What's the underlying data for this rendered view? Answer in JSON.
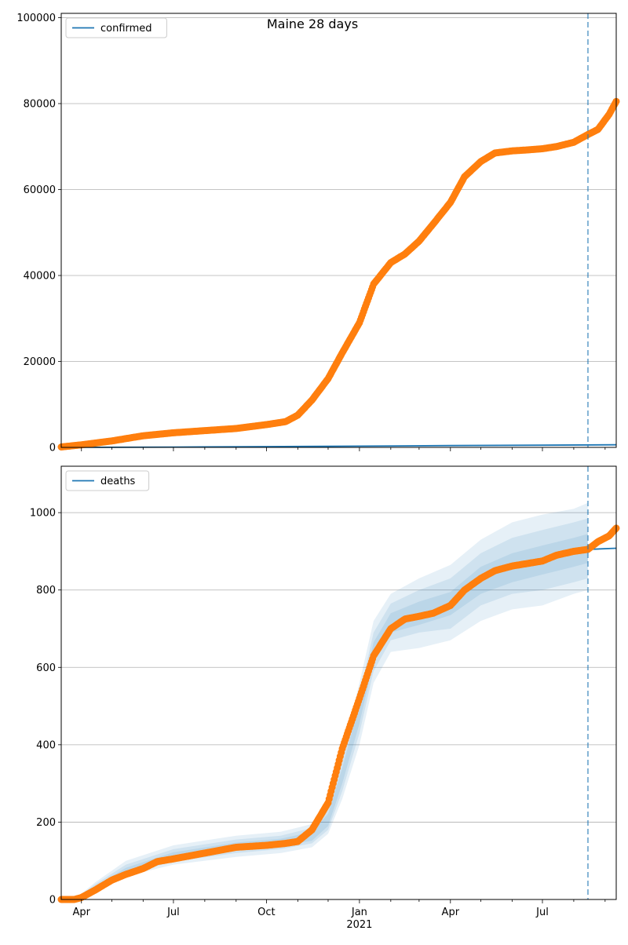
{
  "figure": {
    "title": "Maine 28 days"
  },
  "x_axis": {
    "ticks": [
      {
        "date": "2020-04-01",
        "label": "Apr",
        "sublabel": ""
      },
      {
        "date": "2020-07-01",
        "label": "Jul",
        "sublabel": ""
      },
      {
        "date": "2020-10-01",
        "label": "Oct",
        "sublabel": ""
      },
      {
        "date": "2021-01-01",
        "label": "Jan",
        "sublabel": "2021"
      },
      {
        "date": "2021-04-01",
        "label": "Apr",
        "sublabel": ""
      },
      {
        "date": "2021-07-01",
        "label": "Jul",
        "sublabel": ""
      }
    ]
  },
  "chart_data": [
    {
      "type": "line",
      "panel": "top",
      "title": "Maine 28 days",
      "xlim": [
        "2020-03-12",
        "2021-09-12"
      ],
      "ylim": [
        0,
        101000
      ],
      "yticks": [
        0,
        20000,
        40000,
        60000,
        80000,
        100000
      ],
      "ytick_labels": [
        "0",
        "20000",
        "40000",
        "60000",
        "80000",
        "100000"
      ],
      "grid": "horizontal",
      "legend": {
        "placement": "top-left",
        "entries": [
          "confirmed"
        ]
      },
      "forecast_start": "2021-08-15",
      "colors": {
        "model": "#1f77b4",
        "observed": "#ff7f0e",
        "vline": "#1f77b4"
      },
      "series": [
        {
          "name": "confirmed",
          "kind": "model",
          "x": [
            "2020-03-12",
            "2020-07-01",
            "2020-10-01",
            "2021-01-01",
            "2021-04-01",
            "2021-07-01",
            "2021-09-12"
          ],
          "y": [
            0,
            80,
            180,
            300,
            420,
            520,
            600
          ]
        },
        {
          "kind": "observed",
          "x": [
            "2020-03-12",
            "2020-04-01",
            "2020-05-01",
            "2020-06-01",
            "2020-07-01",
            "2020-08-01",
            "2020-09-01",
            "2020-10-01",
            "2020-10-20",
            "2020-11-01",
            "2020-11-15",
            "2020-12-01",
            "2020-12-15",
            "2021-01-01",
            "2021-01-15",
            "2021-02-01",
            "2021-02-15",
            "2021-03-01",
            "2021-03-15",
            "2021-04-01",
            "2021-04-15",
            "2021-05-01",
            "2021-05-15",
            "2021-06-01",
            "2021-06-15",
            "2021-07-01",
            "2021-07-15",
            "2021-08-01",
            "2021-08-15",
            "2021-08-25",
            "2021-09-05",
            "2021-09-12"
          ],
          "y": [
            100,
            600,
            1500,
            2700,
            3400,
            3900,
            4400,
            5300,
            6000,
            7500,
            11000,
            16000,
            22000,
            29000,
            38000,
            43000,
            45000,
            48000,
            52000,
            57000,
            63000,
            66500,
            68500,
            69000,
            69200,
            69500,
            70000,
            71000,
            72800,
            74000,
            77500,
            80500
          ]
        }
      ]
    },
    {
      "type": "line",
      "panel": "bottom",
      "xlim": [
        "2020-03-12",
        "2021-09-12"
      ],
      "ylim": [
        0,
        1120
      ],
      "yticks": [
        0,
        200,
        400,
        600,
        800,
        1000
      ],
      "ytick_labels": [
        "0",
        "200",
        "400",
        "600",
        "800",
        "1000"
      ],
      "grid": "horizontal",
      "legend": {
        "placement": "top-left",
        "entries": [
          "deaths"
        ]
      },
      "forecast_start": "2021-08-15",
      "colors": {
        "model": "#1f77b4",
        "observed": "#ff7f0e",
        "vline": "#1f77b4"
      },
      "bands": [
        {
          "level": "outer",
          "x": [
            "2020-03-25",
            "2020-04-15",
            "2020-05-15",
            "2020-07-01",
            "2020-09-01",
            "2020-10-15",
            "2020-11-15",
            "2020-12-01",
            "2020-12-15",
            "2021-01-01",
            "2021-01-15",
            "2021-02-01",
            "2021-03-01",
            "2021-04-01",
            "2021-05-01",
            "2021-06-01",
            "2021-07-01",
            "2021-08-01",
            "2021-08-15"
          ],
          "lower": [
            0,
            20,
            60,
            90,
            110,
            120,
            135,
            170,
            260,
            400,
            560,
            640,
            650,
            670,
            720,
            750,
            760,
            790,
            800
          ],
          "upper": [
            0,
            45,
            100,
            140,
            165,
            175,
            195,
            250,
            380,
            560,
            720,
            790,
            830,
            865,
            930,
            975,
            995,
            1010,
            1025
          ]
        },
        {
          "level": "middle",
          "x": [
            "2020-03-25",
            "2020-04-15",
            "2020-05-15",
            "2020-07-01",
            "2020-09-01",
            "2020-10-15",
            "2020-11-15",
            "2020-12-01",
            "2020-12-15",
            "2021-01-01",
            "2021-01-15",
            "2021-02-01",
            "2021-03-01",
            "2021-04-01",
            "2021-05-01",
            "2021-06-01",
            "2021-07-01",
            "2021-08-01",
            "2021-08-15"
          ],
          "lower": [
            0,
            25,
            65,
            98,
            120,
            130,
            145,
            180,
            280,
            430,
            590,
            670,
            690,
            700,
            760,
            790,
            800,
            820,
            830
          ],
          "upper": [
            0,
            40,
            90,
            130,
            155,
            165,
            185,
            235,
            360,
            530,
            690,
            765,
            800,
            830,
            895,
            935,
            955,
            975,
            985
          ]
        },
        {
          "level": "inner",
          "x": [
            "2020-03-25",
            "2020-04-15",
            "2020-05-15",
            "2020-07-01",
            "2020-09-01",
            "2020-10-15",
            "2020-11-15",
            "2020-12-01",
            "2020-12-15",
            "2021-01-01",
            "2021-01-15",
            "2021-02-01",
            "2021-03-01",
            "2021-04-01",
            "2021-05-01",
            "2021-06-01",
            "2021-07-01",
            "2021-08-01",
            "2021-08-15"
          ],
          "lower": [
            0,
            30,
            72,
            105,
            128,
            138,
            152,
            190,
            300,
            455,
            615,
            690,
            710,
            735,
            790,
            820,
            840,
            860,
            870
          ],
          "upper": [
            0,
            35,
            82,
            122,
            147,
            157,
            175,
            222,
            340,
            505,
            665,
            740,
            770,
            795,
            860,
            895,
            915,
            935,
            945
          ]
        }
      ],
      "series": [
        {
          "name": "deaths",
          "kind": "model",
          "x": [
            "2020-03-12",
            "2020-04-01",
            "2020-05-01",
            "2020-06-01",
            "2020-07-01",
            "2020-08-01",
            "2020-09-01",
            "2020-10-01",
            "2020-10-20",
            "2020-11-01",
            "2020-11-15",
            "2020-12-01",
            "2020-12-15",
            "2021-01-01",
            "2021-01-15",
            "2021-02-01",
            "2021-02-15",
            "2021-03-01",
            "2021-03-15",
            "2021-04-01",
            "2021-04-15",
            "2021-05-01",
            "2021-05-15",
            "2021-06-01",
            "2021-06-15",
            "2021-07-01",
            "2021-07-15",
            "2021-08-01",
            "2021-08-15",
            "2021-09-12"
          ],
          "y": [
            0,
            0,
            50,
            85,
            105,
            120,
            135,
            140,
            145,
            150,
            180,
            250,
            390,
            520,
            630,
            700,
            725,
            732,
            740,
            760,
            800,
            830,
            850,
            862,
            868,
            875,
            890,
            900,
            905,
            908
          ]
        },
        {
          "kind": "observed",
          "x": [
            "2020-03-12",
            "2020-03-25",
            "2020-04-01",
            "2020-04-15",
            "2020-05-01",
            "2020-05-15",
            "2020-06-01",
            "2020-06-15",
            "2020-07-01",
            "2020-08-01",
            "2020-09-01",
            "2020-10-01",
            "2020-10-20",
            "2020-11-01",
            "2020-11-15",
            "2020-12-01",
            "2020-12-15",
            "2021-01-01",
            "2021-01-15",
            "2021-02-01",
            "2021-02-15",
            "2021-03-01",
            "2021-03-15",
            "2021-04-01",
            "2021-04-15",
            "2021-05-01",
            "2021-05-15",
            "2021-06-01",
            "2021-06-15",
            "2021-07-01",
            "2021-07-15",
            "2021-08-01",
            "2021-08-15",
            "2021-08-25",
            "2021-09-05",
            "2021-09-12"
          ],
          "y": [
            0,
            0,
            5,
            25,
            50,
            65,
            80,
            98,
            105,
            120,
            135,
            140,
            145,
            150,
            180,
            250,
            390,
            520,
            630,
            700,
            725,
            732,
            740,
            760,
            800,
            830,
            850,
            862,
            868,
            875,
            890,
            900,
            905,
            925,
            940,
            960
          ]
        }
      ]
    }
  ]
}
